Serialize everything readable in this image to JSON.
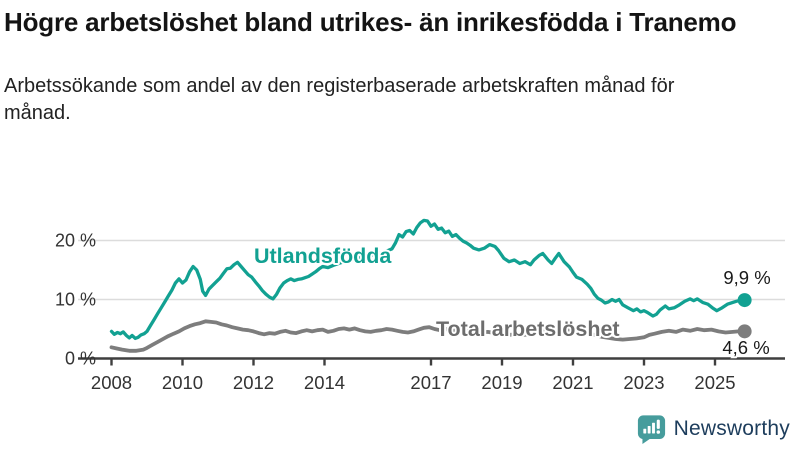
{
  "header": {
    "title": "Högre arbetslöshet bland utrikes- än inrikesfödda i Tranemo",
    "subtitle": "Arbetssökande som andel av den registerbaserade arbetskraften månad för månad."
  },
  "footer": {
    "brand": "Newsworthy"
  },
  "colors": {
    "foreign_born_line": "#12a192",
    "total_line": "#7d7d7d",
    "total_label": "#6d6d6d",
    "gridline": "#dcdcdc",
    "axis": "#3f3f3f",
    "tick_label": "#333333",
    "end_label": "#1a1a1a",
    "logo_teal": "#469c9c",
    "logo_navy": "#1d3d5c"
  },
  "chart_data": {
    "type": "line",
    "title": "Högre arbetslöshet bland utrikes- än inrikesfödda i Tranemo",
    "subtitle": "Arbetssökande som andel av den registerbaserade arbetskraften månad för månad.",
    "xlabel": "",
    "ylabel": "",
    "xlim": [
      2008,
      2026
    ],
    "ylim": [
      0,
      24
    ],
    "grid": "horizontal",
    "legend_position": "inline-labels",
    "y_ticks": [
      {
        "value": 0,
        "label": "0 %"
      },
      {
        "value": 10,
        "label": "10 %"
      },
      {
        "value": 20,
        "label": "20 %"
      }
    ],
    "x_ticks": [
      {
        "value": 2008,
        "label": "2008"
      },
      {
        "value": 2010,
        "label": "2010"
      },
      {
        "value": 2012,
        "label": "2012"
      },
      {
        "value": 2014,
        "label": "2014"
      },
      {
        "value": 2017,
        "label": "2017"
      },
      {
        "value": 2019,
        "label": "2019"
      },
      {
        "value": 2021,
        "label": "2021"
      },
      {
        "value": 2023,
        "label": "2023"
      },
      {
        "value": 2025,
        "label": "2025"
      }
    ],
    "series": [
      {
        "name": "Utlandsfödda",
        "color": "#12a192",
        "end_value": 9.9,
        "end_label": "9,9 %",
        "points": [
          [
            2008.0,
            4.6
          ],
          [
            2008.08,
            4.1
          ],
          [
            2008.17,
            4.4
          ],
          [
            2008.25,
            4.2
          ],
          [
            2008.33,
            4.5
          ],
          [
            2008.42,
            3.9
          ],
          [
            2008.5,
            3.5
          ],
          [
            2008.58,
            3.9
          ],
          [
            2008.67,
            3.4
          ],
          [
            2008.75,
            3.6
          ],
          [
            2008.83,
            4.0
          ],
          [
            2008.92,
            4.2
          ],
          [
            2009.0,
            4.6
          ],
          [
            2009.1,
            5.6
          ],
          [
            2009.2,
            6.6
          ],
          [
            2009.3,
            7.6
          ],
          [
            2009.4,
            8.6
          ],
          [
            2009.5,
            9.6
          ],
          [
            2009.6,
            10.6
          ],
          [
            2009.7,
            11.6
          ],
          [
            2009.8,
            12.8
          ],
          [
            2009.9,
            13.5
          ],
          [
            2010.0,
            12.8
          ],
          [
            2010.1,
            13.3
          ],
          [
            2010.2,
            14.7
          ],
          [
            2010.3,
            15.6
          ],
          [
            2010.4,
            15.0
          ],
          [
            2010.5,
            13.4
          ],
          [
            2010.57,
            11.4
          ],
          [
            2010.65,
            10.7
          ],
          [
            2010.75,
            11.8
          ],
          [
            2010.85,
            12.4
          ],
          [
            2010.95,
            13.0
          ],
          [
            2011.05,
            13.6
          ],
          [
            2011.15,
            14.4
          ],
          [
            2011.25,
            15.2
          ],
          [
            2011.35,
            15.3
          ],
          [
            2011.45,
            15.9
          ],
          [
            2011.55,
            16.3
          ],
          [
            2011.65,
            15.6
          ],
          [
            2011.75,
            14.9
          ],
          [
            2011.85,
            14.2
          ],
          [
            2011.95,
            13.8
          ],
          [
            2012.05,
            13.0
          ],
          [
            2012.15,
            12.3
          ],
          [
            2012.25,
            11.5
          ],
          [
            2012.35,
            10.9
          ],
          [
            2012.45,
            10.4
          ],
          [
            2012.55,
            10.1
          ],
          [
            2012.65,
            10.9
          ],
          [
            2012.75,
            12.0
          ],
          [
            2012.85,
            12.8
          ],
          [
            2012.95,
            13.2
          ],
          [
            2013.05,
            13.5
          ],
          [
            2013.15,
            13.2
          ],
          [
            2013.25,
            13.4
          ],
          [
            2013.35,
            13.5
          ],
          [
            2013.45,
            13.7
          ],
          [
            2013.55,
            13.9
          ],
          [
            2013.65,
            14.3
          ],
          [
            2013.75,
            14.7
          ],
          [
            2013.85,
            15.2
          ],
          [
            2013.95,
            15.6
          ],
          [
            2014.1,
            15.4
          ],
          [
            2014.25,
            15.8
          ],
          [
            2014.4,
            16.1
          ],
          [
            2014.55,
            16.4
          ],
          [
            2014.7,
            16.7
          ],
          [
            2014.85,
            16.9
          ],
          [
            2015.0,
            17.1
          ],
          [
            2015.15,
            17.3
          ],
          [
            2015.3,
            17.5
          ],
          [
            2015.45,
            17.7
          ],
          [
            2015.6,
            17.9
          ],
          [
            2015.75,
            18.2
          ],
          [
            2015.9,
            18.6
          ],
          [
            2016.0,
            19.6
          ],
          [
            2016.1,
            21.0
          ],
          [
            2016.2,
            20.6
          ],
          [
            2016.3,
            21.5
          ],
          [
            2016.4,
            21.7
          ],
          [
            2016.5,
            21.1
          ],
          [
            2016.6,
            22.2
          ],
          [
            2016.7,
            23.0
          ],
          [
            2016.8,
            23.4
          ],
          [
            2016.9,
            23.3
          ],
          [
            2017.0,
            22.4
          ],
          [
            2017.1,
            22.8
          ],
          [
            2017.2,
            21.9
          ],
          [
            2017.3,
            22.1
          ],
          [
            2017.4,
            21.3
          ],
          [
            2017.5,
            21.6
          ],
          [
            2017.6,
            20.7
          ],
          [
            2017.7,
            21.0
          ],
          [
            2017.8,
            20.4
          ],
          [
            2017.9,
            19.9
          ],
          [
            2018.0,
            19.6
          ],
          [
            2018.1,
            19.2
          ],
          [
            2018.2,
            18.7
          ],
          [
            2018.35,
            18.4
          ],
          [
            2018.5,
            18.7
          ],
          [
            2018.65,
            19.3
          ],
          [
            2018.8,
            19.0
          ],
          [
            2018.9,
            18.3
          ],
          [
            2019.05,
            17.0
          ],
          [
            2019.2,
            16.4
          ],
          [
            2019.35,
            16.7
          ],
          [
            2019.5,
            16.1
          ],
          [
            2019.65,
            16.4
          ],
          [
            2019.8,
            15.9
          ],
          [
            2019.9,
            16.7
          ],
          [
            2020.05,
            17.5
          ],
          [
            2020.15,
            17.8
          ],
          [
            2020.3,
            16.7
          ],
          [
            2020.4,
            16.1
          ],
          [
            2020.5,
            17.0
          ],
          [
            2020.6,
            17.8
          ],
          [
            2020.75,
            16.4
          ],
          [
            2020.9,
            15.5
          ],
          [
            2021.0,
            14.6
          ],
          [
            2021.1,
            13.8
          ],
          [
            2021.25,
            13.4
          ],
          [
            2021.4,
            12.6
          ],
          [
            2021.5,
            11.9
          ],
          [
            2021.6,
            10.9
          ],
          [
            2021.7,
            10.2
          ],
          [
            2021.8,
            9.9
          ],
          [
            2021.9,
            9.4
          ],
          [
            2022.0,
            9.6
          ],
          [
            2022.1,
            10.0
          ],
          [
            2022.2,
            9.7
          ],
          [
            2022.3,
            10.0
          ],
          [
            2022.4,
            9.1
          ],
          [
            2022.55,
            8.6
          ],
          [
            2022.7,
            8.1
          ],
          [
            2022.8,
            8.4
          ],
          [
            2022.9,
            7.9
          ],
          [
            2023.0,
            8.1
          ],
          [
            2023.1,
            7.8
          ],
          [
            2023.25,
            7.2
          ],
          [
            2023.35,
            7.5
          ],
          [
            2023.45,
            8.2
          ],
          [
            2023.6,
            8.9
          ],
          [
            2023.7,
            8.4
          ],
          [
            2023.85,
            8.6
          ],
          [
            2024.0,
            9.1
          ],
          [
            2024.15,
            9.7
          ],
          [
            2024.3,
            10.1
          ],
          [
            2024.4,
            9.8
          ],
          [
            2024.5,
            10.1
          ],
          [
            2024.65,
            9.5
          ],
          [
            2024.8,
            9.2
          ],
          [
            2024.95,
            8.5
          ],
          [
            2025.05,
            8.1
          ],
          [
            2025.2,
            8.6
          ],
          [
            2025.35,
            9.2
          ],
          [
            2025.5,
            9.5
          ],
          [
            2025.6,
            9.7
          ],
          [
            2025.75,
            9.9
          ]
        ]
      },
      {
        "name": "Total arbetslöshet",
        "color": "#7d7d7d",
        "end_value": 4.6,
        "end_label": "4,6 %",
        "points": [
          [
            2008.0,
            1.9
          ],
          [
            2008.15,
            1.7
          ],
          [
            2008.3,
            1.5
          ],
          [
            2008.5,
            1.3
          ],
          [
            2008.7,
            1.3
          ],
          [
            2008.9,
            1.5
          ],
          [
            2009.0,
            1.8
          ],
          [
            2009.15,
            2.3
          ],
          [
            2009.3,
            2.8
          ],
          [
            2009.45,
            3.3
          ],
          [
            2009.6,
            3.8
          ],
          [
            2009.75,
            4.2
          ],
          [
            2009.9,
            4.6
          ],
          [
            2010.05,
            5.1
          ],
          [
            2010.2,
            5.5
          ],
          [
            2010.35,
            5.8
          ],
          [
            2010.5,
            6.0
          ],
          [
            2010.65,
            6.3
          ],
          [
            2010.8,
            6.2
          ],
          [
            2010.95,
            6.1
          ],
          [
            2011.1,
            5.8
          ],
          [
            2011.25,
            5.6
          ],
          [
            2011.4,
            5.3
          ],
          [
            2011.55,
            5.1
          ],
          [
            2011.7,
            4.9
          ],
          [
            2011.85,
            4.8
          ],
          [
            2012.0,
            4.6
          ],
          [
            2012.15,
            4.3
          ],
          [
            2012.3,
            4.1
          ],
          [
            2012.45,
            4.3
          ],
          [
            2012.6,
            4.2
          ],
          [
            2012.75,
            4.5
          ],
          [
            2012.9,
            4.7
          ],
          [
            2013.05,
            4.4
          ],
          [
            2013.2,
            4.3
          ],
          [
            2013.35,
            4.6
          ],
          [
            2013.5,
            4.8
          ],
          [
            2013.65,
            4.6
          ],
          [
            2013.8,
            4.8
          ],
          [
            2013.95,
            4.9
          ],
          [
            2014.1,
            4.5
          ],
          [
            2014.25,
            4.7
          ],
          [
            2014.4,
            5.0
          ],
          [
            2014.55,
            5.1
          ],
          [
            2014.7,
            4.9
          ],
          [
            2014.85,
            5.1
          ],
          [
            2015.0,
            4.8
          ],
          [
            2015.15,
            4.6
          ],
          [
            2015.3,
            4.5
          ],
          [
            2015.45,
            4.7
          ],
          [
            2015.6,
            4.8
          ],
          [
            2015.75,
            5.0
          ],
          [
            2015.9,
            4.9
          ],
          [
            2016.05,
            4.7
          ],
          [
            2016.2,
            4.5
          ],
          [
            2016.35,
            4.4
          ],
          [
            2016.5,
            4.6
          ],
          [
            2016.65,
            4.9
          ],
          [
            2016.8,
            5.2
          ],
          [
            2016.95,
            5.3
          ],
          [
            2017.1,
            5.0
          ],
          [
            2017.25,
            4.8
          ],
          [
            2017.4,
            5.0
          ],
          [
            2017.55,
            4.8
          ],
          [
            2017.7,
            4.7
          ],
          [
            2017.85,
            4.8
          ],
          [
            2018.0,
            4.7
          ],
          [
            2018.2,
            4.5
          ],
          [
            2018.4,
            4.4
          ],
          [
            2018.6,
            4.5
          ],
          [
            2018.8,
            4.3
          ],
          [
            2019.0,
            4.2
          ],
          [
            2019.2,
            4.0
          ],
          [
            2019.4,
            4.1
          ],
          [
            2019.6,
            4.0
          ],
          [
            2019.8,
            4.1
          ],
          [
            2020.0,
            4.4
          ],
          [
            2020.2,
            5.0
          ],
          [
            2020.4,
            5.4
          ],
          [
            2020.6,
            5.2
          ],
          [
            2020.8,
            5.0
          ],
          [
            2021.0,
            4.8
          ],
          [
            2021.2,
            4.5
          ],
          [
            2021.4,
            4.3
          ],
          [
            2021.6,
            4.0
          ],
          [
            2021.8,
            3.7
          ],
          [
            2022.0,
            3.5
          ],
          [
            2022.2,
            3.3
          ],
          [
            2022.4,
            3.2
          ],
          [
            2022.6,
            3.3
          ],
          [
            2022.8,
            3.4
          ],
          [
            2023.0,
            3.6
          ],
          [
            2023.15,
            4.0
          ],
          [
            2023.3,
            4.2
          ],
          [
            2023.5,
            4.5
          ],
          [
            2023.7,
            4.7
          ],
          [
            2023.9,
            4.5
          ],
          [
            2024.1,
            4.9
          ],
          [
            2024.3,
            4.7
          ],
          [
            2024.5,
            5.0
          ],
          [
            2024.7,
            4.8
          ],
          [
            2024.9,
            4.9
          ],
          [
            2025.1,
            4.6
          ],
          [
            2025.3,
            4.4
          ],
          [
            2025.5,
            4.5
          ],
          [
            2025.65,
            4.6
          ],
          [
            2025.75,
            4.6
          ]
        ]
      }
    ]
  }
}
